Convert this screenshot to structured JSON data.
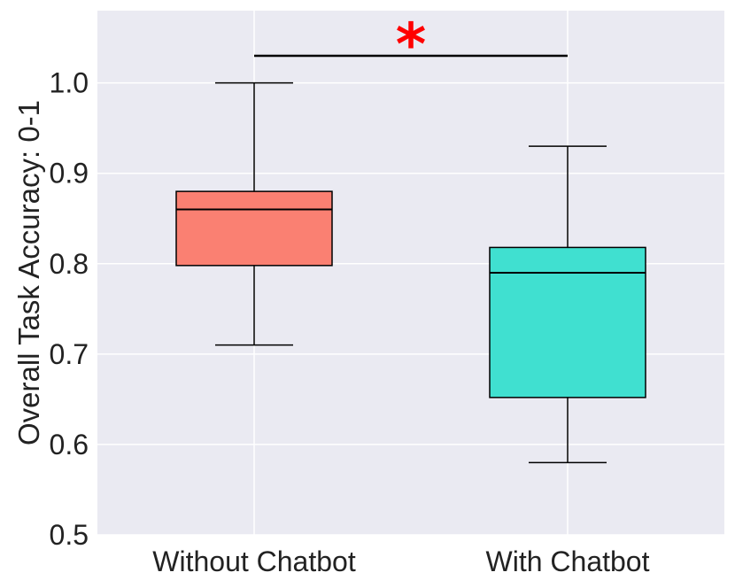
{
  "chart_data": {
    "type": "box",
    "ylabel": "Overall Task Accuracy: 0-1",
    "ylim": [
      0.5,
      1.08
    ],
    "yticks": [
      "0.5",
      "0.6",
      "0.7",
      "0.8",
      "0.9",
      "1.0"
    ],
    "grid": true,
    "categories": [
      "Without Chatbot",
      "With Chatbot"
    ],
    "boxes": [
      {
        "category": "Without Chatbot",
        "whisker_low": 0.71,
        "q1": 0.798,
        "median": 0.86,
        "q3": 0.88,
        "whisker_high": 1.0,
        "color": "#fa8072"
      },
      {
        "category": "With Chatbot",
        "whisker_low": 0.58,
        "q1": 0.652,
        "median": 0.79,
        "q3": 0.818,
        "whisker_high": 0.93,
        "color": "#40e0d0"
      }
    ],
    "significance": {
      "between": [
        "Without Chatbot",
        "With Chatbot"
      ],
      "at": 1.03,
      "label": "*",
      "color": "#ff0000"
    }
  }
}
